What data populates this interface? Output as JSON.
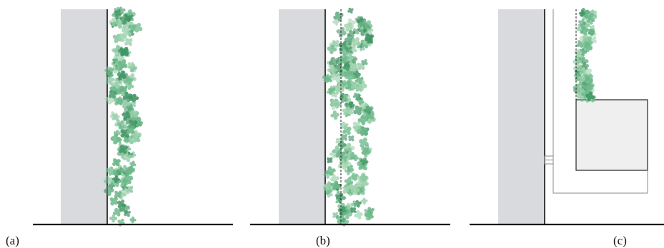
{
  "panels": [
    {
      "id": "a",
      "label": "(a)",
      "system": "direct-climbing",
      "support_line": false,
      "planter": false
    },
    {
      "id": "b",
      "label": "(b)",
      "system": "trellis-supported",
      "support_line": true,
      "planter": false
    },
    {
      "id": "c",
      "label": "(c)",
      "system": "planter-box",
      "support_line": true,
      "planter": true
    }
  ],
  "colors": {
    "wall": "#d9dadd",
    "wall_edge": "#111111",
    "ground": "#111111",
    "leaf_light": "#9fd3ae",
    "leaf_mid": "#6cb889",
    "leaf_dark": "#3f9463",
    "planter_fill": "#efeff0",
    "planter_edge": "#222222",
    "frame_line": "#8a8a8a"
  }
}
